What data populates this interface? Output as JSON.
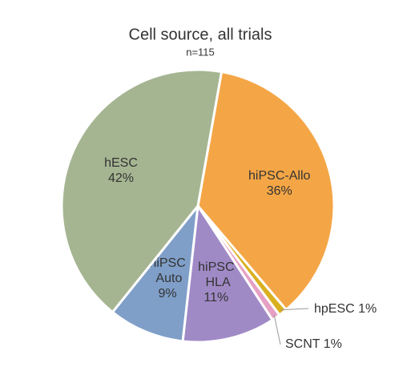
{
  "chart_data": {
    "type": "pie",
    "title": "Cell source, all trials",
    "subtitle": "n=115",
    "categories": [
      "hiPSC-Allo",
      "hpESC",
      "SCNT",
      "hiPSC HLA",
      "hiPSC Auto",
      "hESC"
    ],
    "values": [
      36,
      1,
      1,
      11,
      9,
      42
    ],
    "value_labels": [
      "36%",
      "1%",
      "1%",
      "11%",
      "9%",
      "42%"
    ],
    "colors": [
      "#f4a646",
      "#d9b020",
      "#e6a0c4",
      "#a08ac6",
      "#7f9fc8",
      "#a5b592"
    ]
  }
}
